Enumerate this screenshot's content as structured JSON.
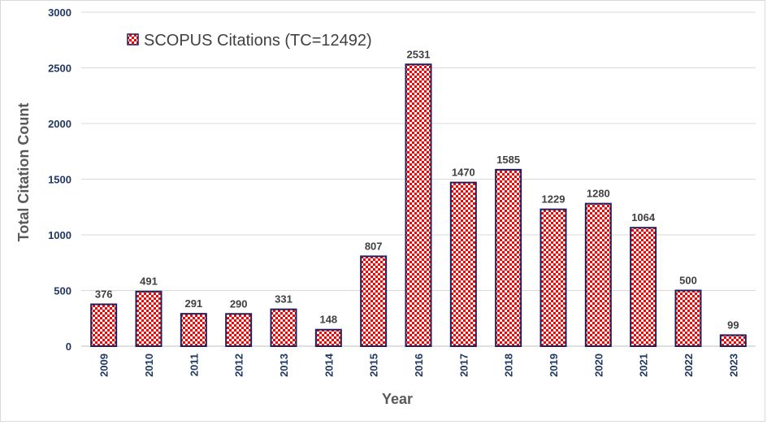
{
  "chart_data": {
    "type": "bar",
    "categories": [
      "2009",
      "2010",
      "2011",
      "2012",
      "2013",
      "2014",
      "2015",
      "2016",
      "2017",
      "2018",
      "2019",
      "2020",
      "2021",
      "2022",
      "2023"
    ],
    "series": [
      {
        "name": "SCOPUS Citations (TC=12492)",
        "values": [
          376,
          491,
          291,
          290,
          331,
          148,
          807,
          2531,
          1470,
          1585,
          1229,
          1280,
          1064,
          500,
          99
        ]
      }
    ],
    "xlabel": "Year",
    "ylabel": "Total Citation Count",
    "ylim": [
      0,
      3000
    ],
    "yticks": [
      0,
      500,
      1000,
      1500,
      2000,
      2500,
      3000
    ],
    "grid": true,
    "legend_position": "top-left",
    "colors": {
      "bar_fill": "#ff0000",
      "bar_pattern": "#ffffff",
      "bar_border": "#1f1f5c",
      "gridline": "#d9d9d9",
      "tick_label": "#1f3864",
      "axis_title": "#595959"
    }
  }
}
